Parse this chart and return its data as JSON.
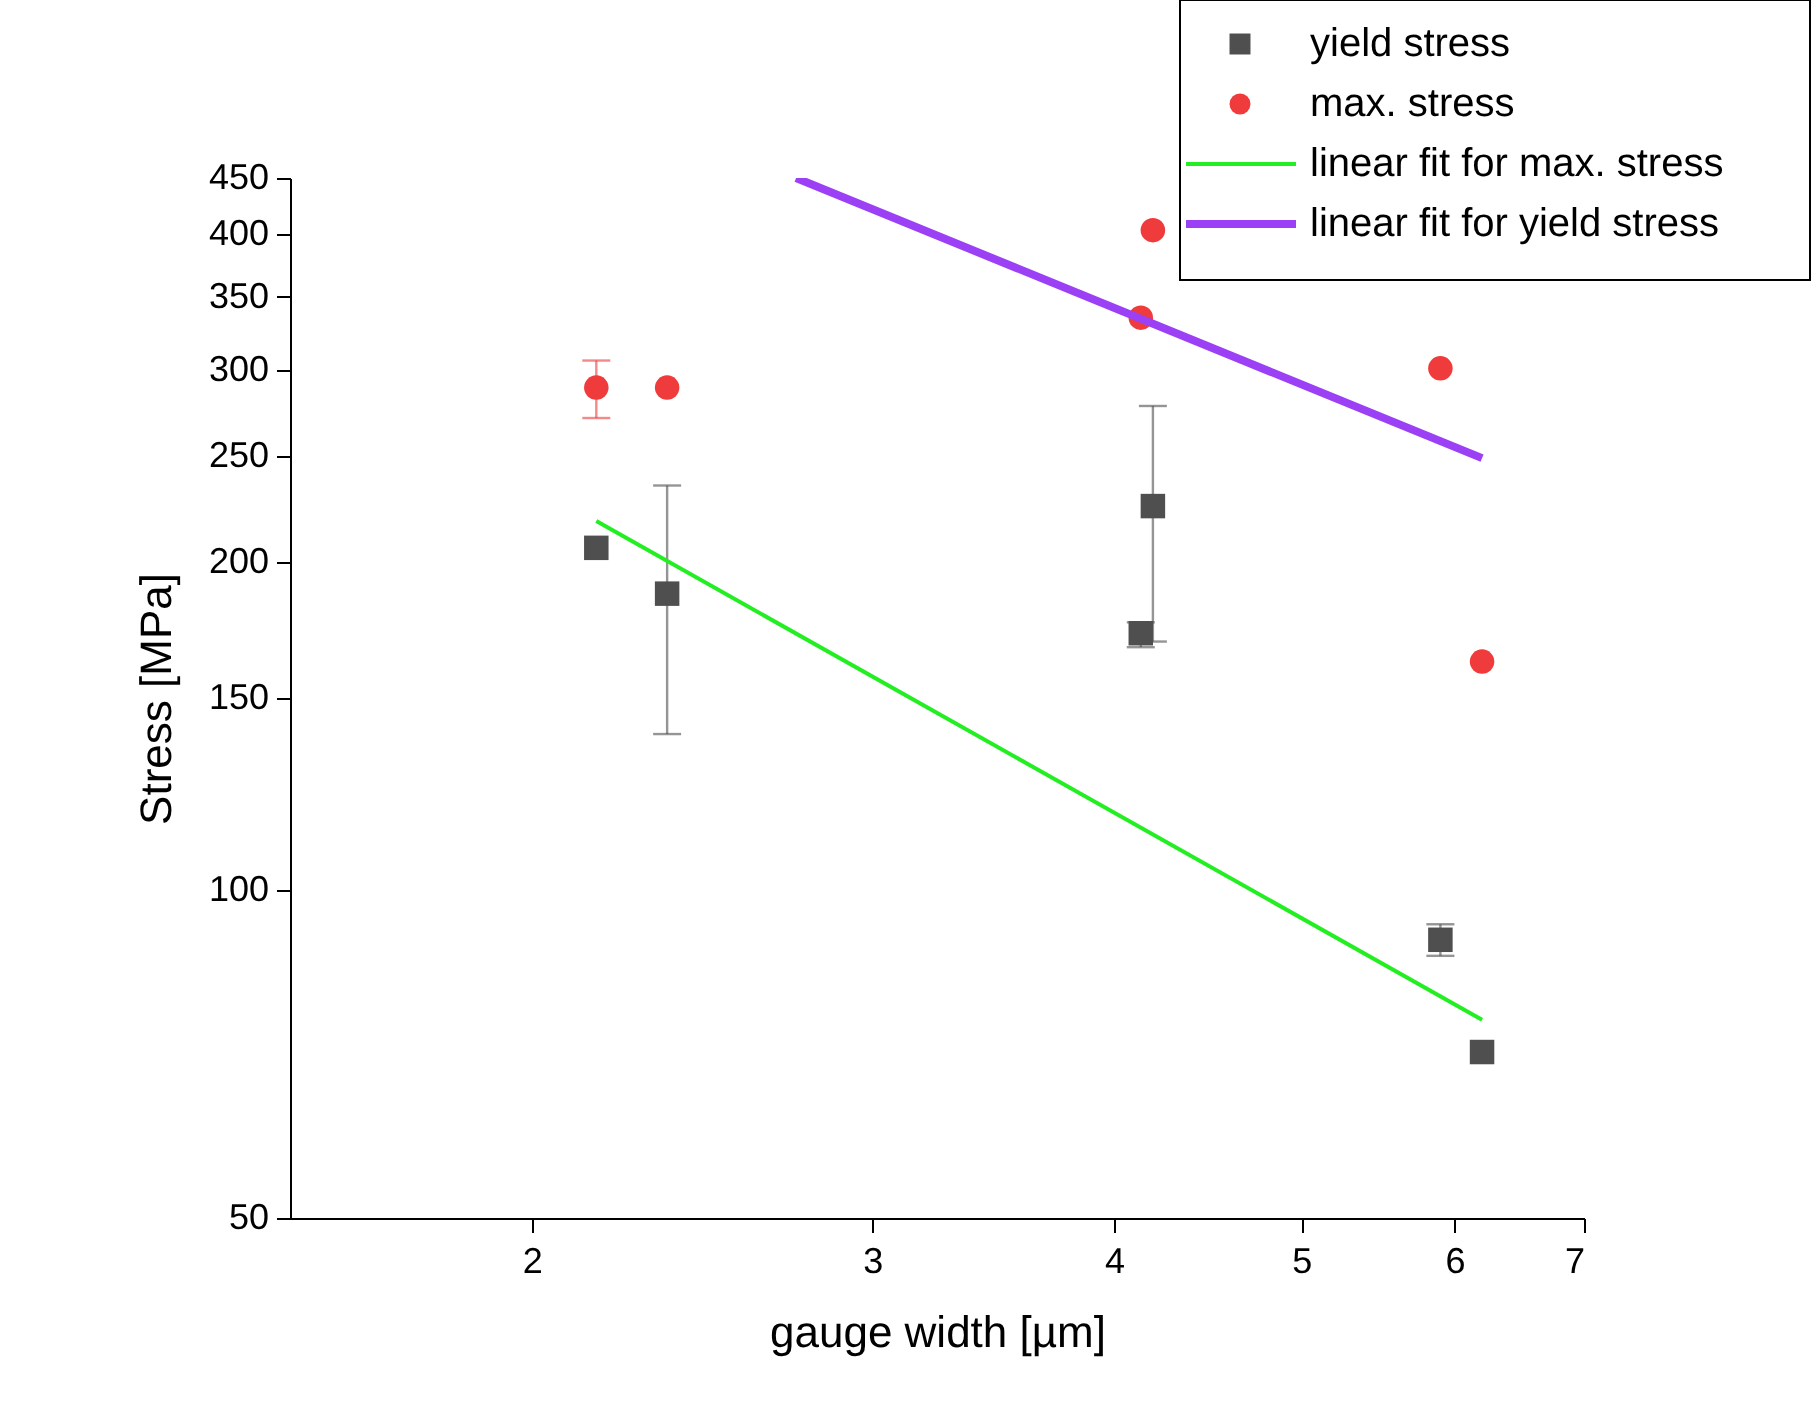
{
  "chart_data": {
    "type": "scatter",
    "xlabel": "gauge width [µm]",
    "ylabel": "Stress [MPa]",
    "log": "xy",
    "xlim": [
      1.5,
      7
    ],
    "xticks": [
      2,
      3,
      4,
      5,
      6,
      7
    ],
    "ylim": [
      50,
      450
    ],
    "yticks": [
      50,
      100,
      150,
      200,
      250,
      300,
      350,
      400,
      450
    ],
    "grid": false,
    "legend": "top right",
    "series": [
      {
        "name": "yield stress",
        "marker": "square",
        "color": "#4f4f4f",
        "x": [
          2.16,
          2.35,
          4.19,
          4.13,
          5.9,
          6.2
        ],
        "values": [
          206,
          187,
          225,
          172,
          90,
          71
        ],
        "errors": [
          null,
          [
            139,
            235
          ],
          [
            169,
            278
          ],
          [
            167,
            176
          ],
          [
            87,
            93
          ],
          null
        ]
      },
      {
        "name": "max. stress",
        "marker": "circle",
        "color": "#ef3b3b",
        "x": [
          2.16,
          2.35,
          4.19,
          4.13,
          5.9,
          6.2
        ],
        "values": [
          289,
          289,
          403,
          335,
          301,
          162
        ],
        "errors": [
          [
            271,
            306
          ],
          null,
          null,
          null,
          null,
          null
        ]
      },
      {
        "name": "linear fit for max. stress",
        "type": "line",
        "color": "#22ee22",
        "x": [
          2.16,
          6.2
        ],
        "values": [
          218,
          76
        ]
      },
      {
        "name": "linear fit for yield stress",
        "type": "line",
        "color": "#9b40f5",
        "x": [
          2.74,
          6.2
        ],
        "values": [
          450,
          249
        ]
      }
    ]
  }
}
